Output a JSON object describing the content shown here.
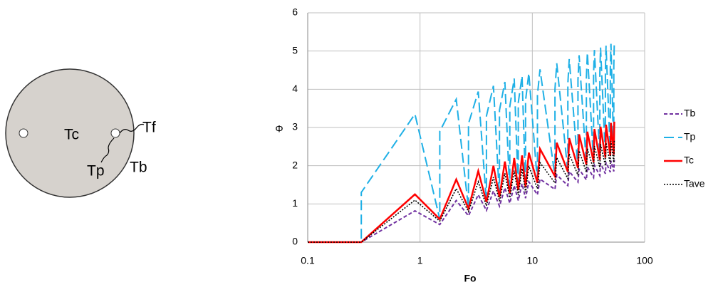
{
  "diagram": {
    "labels": [
      "Tc",
      "Tf",
      "Tp",
      "Tb"
    ]
  },
  "chart_data": {
    "type": "line",
    "xlabel": "Fo",
    "ylabel": "Φ",
    "xscale": "log",
    "grid": true,
    "legend": "right",
    "xlim": [
      0.1,
      100
    ],
    "xticks": [
      0.1,
      1,
      10,
      100
    ],
    "ylim": [
      0,
      6
    ],
    "yticks": [
      0,
      1,
      2,
      3,
      4,
      5,
      6
    ],
    "x": [
      0.1,
      0.3,
      0.9,
      1.5,
      2.1,
      2.7,
      3.3,
      3.9,
      4.5,
      5.1,
      5.7,
      6.3,
      6.9,
      7.5,
      8.1,
      8.7,
      9.3,
      11.1,
      11.7,
      15.9,
      16.5,
      20.7,
      21.3,
      25.5,
      26.1,
      30.3,
      30.9,
      35.1,
      35.7,
      39.9,
      40.5,
      44.7,
      45.3,
      49.5,
      50.1,
      53.1,
      53.7
    ],
    "series": [
      {
        "name": "Tb",
        "color": "#7030a0",
        "dash": "5,3",
        "width": 2,
        "values": [
          0,
          0,
          0.82,
          0.46,
          1.09,
          0.69,
          1.24,
          0.83,
          1.34,
          0.94,
          1.42,
          1.02,
          1.48,
          1.09,
          1.53,
          1.15,
          1.58,
          1.24,
          1.65,
          1.38,
          1.76,
          1.48,
          1.85,
          1.57,
          1.91,
          1.63,
          1.97,
          1.69,
          2.01,
          1.74,
          2.06,
          1.79,
          2.09,
          1.83,
          2.13,
          1.85,
          2.15
        ]
      },
      {
        "name": "Tp",
        "color": "#1fb0e6",
        "dash": "14,6",
        "width": 2,
        "x": [
          0.1,
          0.3,
          0.3,
          0.9,
          1.5,
          1.5,
          2.1,
          2.7,
          2.7,
          3.3,
          3.9,
          3.9,
          4.5,
          5.1,
          5.1,
          5.7,
          6.3,
          6.3,
          6.9,
          7.5,
          7.5,
          8.1,
          8.7,
          8.7,
          9.3,
          11.1,
          11.1,
          11.7,
          15.9,
          15.9,
          16.5,
          20.7,
          20.7,
          21.3,
          25.5,
          25.5,
          26.1,
          30.3,
          30.3,
          30.9,
          35.1,
          35.1,
          35.7,
          39.9,
          39.9,
          40.5,
          44.7,
          44.7,
          45.3,
          49.5,
          49.5,
          50.1,
          53.1,
          53.1,
          53.7
        ],
        "values": [
          0,
          0,
          1.3,
          3.35,
          0.6,
          2.9,
          3.74,
          0.88,
          3.1,
          3.94,
          1.05,
          3.3,
          4.09,
          1.18,
          3.45,
          4.19,
          1.28,
          3.55,
          4.28,
          1.36,
          3.65,
          4.35,
          1.43,
          3.7,
          4.42,
          1.55,
          3.85,
          4.52,
          1.72,
          4.0,
          4.68,
          1.84,
          4.15,
          4.79,
          1.94,
          4.25,
          4.89,
          2.02,
          4.3,
          4.96,
          2.09,
          4.4,
          5.03,
          2.15,
          4.45,
          5.09,
          2.21,
          4.5,
          5.14,
          2.26,
          4.55,
          5.19,
          2.29,
          4.6,
          5.22
        ]
      },
      {
        "name": "Tc",
        "color": "#ff0000",
        "dash": "none",
        "width": 2.5,
        "values": [
          0,
          0,
          1.25,
          0.6,
          1.64,
          0.88,
          1.86,
          1.05,
          2.0,
          1.18,
          2.11,
          1.28,
          2.2,
          1.36,
          2.27,
          1.43,
          2.34,
          1.55,
          2.44,
          1.72,
          2.6,
          1.84,
          2.72,
          1.94,
          2.82,
          2.02,
          2.89,
          2.09,
          2.96,
          2.15,
          3.02,
          2.21,
          3.07,
          2.26,
          3.12,
          2.29,
          3.15
        ]
      },
      {
        "name": "Tave",
        "color": "#000000",
        "dash": "2,2",
        "width": 1.6,
        "values": [
          0,
          0,
          1.1,
          0.55,
          1.4,
          0.8,
          1.58,
          0.95,
          1.7,
          1.07,
          1.8,
          1.16,
          1.87,
          1.23,
          1.93,
          1.3,
          1.99,
          1.4,
          2.08,
          1.55,
          2.21,
          1.66,
          2.31,
          1.75,
          2.39,
          1.83,
          2.45,
          1.89,
          2.51,
          1.95,
          2.56,
          2.0,
          2.6,
          2.05,
          2.64,
          2.08,
          2.67
        ]
      }
    ]
  }
}
